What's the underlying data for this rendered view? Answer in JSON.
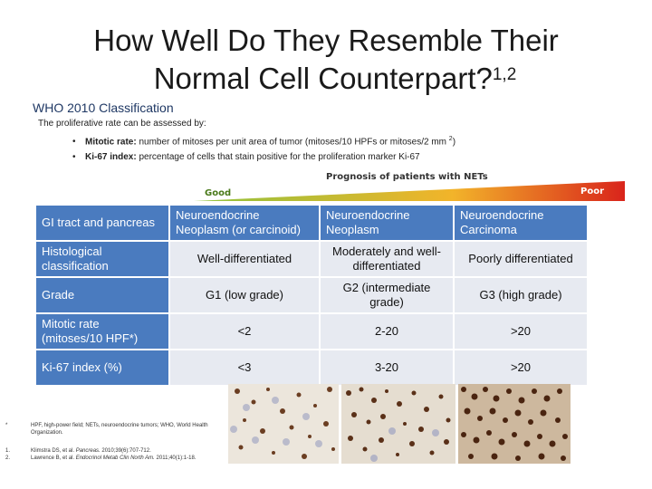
{
  "slide": {
    "title_line1": "How Well Do They Resemble Their",
    "title_line2": "Normal Cell Counterpart?",
    "title_sup": "1,2",
    "subtitle": "WHO 2010 Classification",
    "intro": "The proliferative rate can be assessed by:",
    "bullets": [
      {
        "label": "Mitotic rate:",
        "text": " number of mitoses per unit area of tumor (mitoses/10 HPFs or mitoses/2 mm ",
        "sup": "2",
        "tail": ")"
      },
      {
        "label": "Ki-67 index:",
        "text": " percentage of cells that stain positive for the proliferation marker Ki-67",
        "sup": "",
        "tail": ""
      }
    ],
    "prognosis_title": "Prognosis of patients with NETs",
    "good_label": "Good",
    "poor_label": "Poor"
  },
  "table": {
    "header": [
      "GI tract and pancreas",
      "Neuroendocrine Neoplasm (or carcinoid)",
      "Neuroendocrine Neoplasm",
      "Neuroendocrine Carcinoma"
    ],
    "rows": [
      [
        "Histological classification",
        "Well-differentiated",
        "Moderately and well-differentiated",
        "Poorly differentiated"
      ],
      [
        "Grade",
        "G1 (low grade)",
        "G2 (intermediate grade)",
        "G3 (high grade)"
      ],
      [
        "Mitotic rate (mitoses/10 HPF*)",
        "<2",
        "2-20",
        ">20"
      ],
      [
        "Ki-67 index (%)",
        "<3",
        "3-20",
        ">20"
      ]
    ]
  },
  "footnotes": {
    "star_marker": "*",
    "star_text": "HPF, high-power field; NETs, neuroendocrine tumors; WHO, World Health Organization.",
    "refs": [
      {
        "n": "1.",
        "pre": "Klimstra DS, et al. ",
        "journal": "Pancreas.",
        "post": " 2010;39(6):707-712."
      },
      {
        "n": "2.",
        "pre": "Lawrence B, et al. ",
        "journal": "Endocrinol Metab Clin North Am.",
        "post": " 2011;40(1):1-18."
      }
    ]
  },
  "colors": {
    "header_fill": "#4a7bbf",
    "cell_fill": "#e7eaf1",
    "wedge_good": "#8fc23c",
    "wedge_mid": "#f2b42a",
    "wedge_poor": "#d9241b"
  }
}
